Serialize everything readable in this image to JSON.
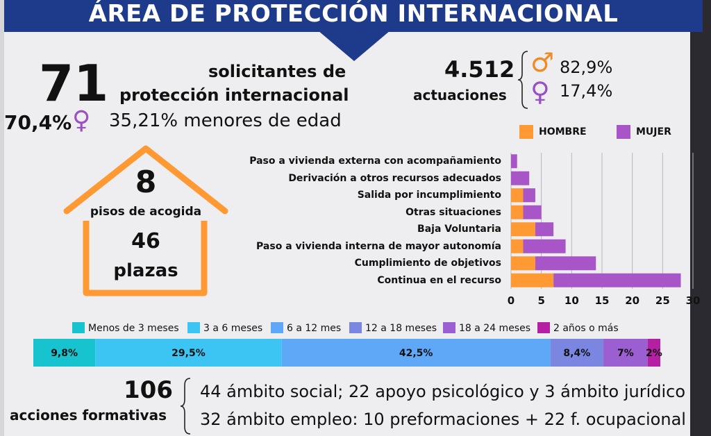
{
  "header": {
    "title": "ÁREA DE PROTECCIÓN INTERNACIONAL"
  },
  "solicitantes": {
    "count": "71",
    "label_line1": "solicitantes de",
    "label_line2": "protección internacional",
    "female_pct": "70,4%",
    "minors": "35,21% menores de edad"
  },
  "actuaciones": {
    "count": "4.512",
    "label": "actuaciones",
    "male_pct": "82,9%",
    "female_pct": "17,4%"
  },
  "pisos": {
    "count": "8",
    "label": "pisos de acogida",
    "plazas_count": "46",
    "plazas_label": "plazas"
  },
  "icons": {
    "male": "♂",
    "female": "♀"
  },
  "colors": {
    "banner": "#1e3a8a",
    "orange": "#ff9933",
    "purple": "#a855c7",
    "female_icon": "#9b4fc4",
    "male_icon": "#f08a24"
  },
  "chart_data": [
    {
      "type": "bar",
      "orientation": "horizontal",
      "stacked": true,
      "categories": [
        "Paso a vivienda externa con acompañamiento",
        "Derivación a otros recursos adecuados",
        "Salida por incumplimiento",
        "Otras situaciones",
        "Baja Voluntaria",
        "Paso a vivienda interna de mayor autonomía",
        "Cumplimiento de objetivos",
        "Continua en el recurso"
      ],
      "series": [
        {
          "name": "HOMBRE",
          "color": "#ff9933",
          "values": [
            0,
            0,
            2,
            2,
            4,
            2,
            4,
            7
          ]
        },
        {
          "name": "MUJER",
          "color": "#a855c7",
          "values": [
            1,
            3,
            2,
            3,
            3,
            7,
            10,
            21
          ]
        }
      ],
      "xlim": [
        0,
        30
      ],
      "xticks": [
        "0",
        "5",
        "10",
        "15",
        "20",
        "25",
        "30"
      ],
      "grid": true,
      "legend_position": "top"
    },
    {
      "type": "bar",
      "orientation": "horizontal",
      "stacked": true,
      "title": "",
      "categories": [
        "Menos de 3 meses",
        "3 a 6 meses",
        "6 a 12 mes",
        "12 a 18 meses",
        "18 a 24 meses",
        "2 años o más"
      ],
      "values": [
        9.8,
        29.5,
        42.5,
        8.4,
        7,
        2
      ],
      "value_labels": [
        "9,8%",
        "29,5%",
        "42,5%",
        "8,4%",
        "7%",
        "2%"
      ],
      "colors": [
        "#17c3cf",
        "#3cc4f2",
        "#5ea8f7",
        "#7b86e0",
        "#9c5fd1",
        "#b51fa4"
      ],
      "legend_position": "top"
    }
  ],
  "acciones": {
    "count": "106",
    "label": "acciones formativas",
    "line1": "44 ámbito social; 22 apoyo psicológico  y 3 ámbito jurídico",
    "line2": "32 ámbito empleo: 10 preformaciones + 22 f. ocupacional"
  }
}
